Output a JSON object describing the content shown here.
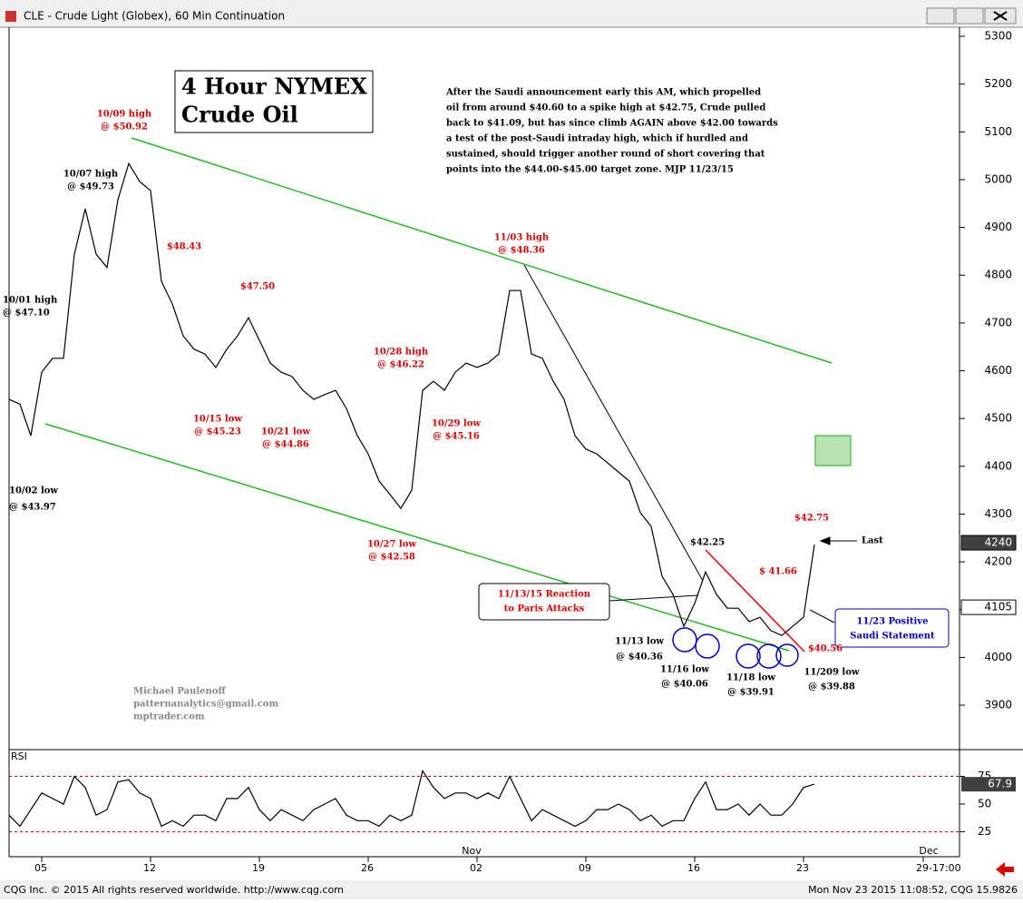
{
  "header": {
    "title": "CLE - Crude Light (Globex), 60 Min Continuation"
  },
  "chart_data": {
    "type": "line",
    "categories": [
      null,
      null,
      null,
      "05",
      null,
      null,
      null,
      null,
      null,
      null,
      null,
      null,
      null,
      "12",
      null,
      null,
      null,
      null,
      null,
      null,
      null,
      null,
      null,
      "19",
      null,
      null,
      null,
      null,
      null,
      null,
      null,
      null,
      null,
      "26",
      null,
      null,
      null,
      null,
      null,
      null,
      null,
      null,
      null,
      "02",
      null,
      null,
      null,
      null,
      null,
      null,
      null,
      null,
      null,
      "09",
      null,
      null,
      null,
      null,
      null,
      null,
      null,
      null,
      null,
      "16",
      null,
      null,
      null,
      null,
      null,
      null,
      null,
      null,
      null,
      "23",
      null,
      null,
      null,
      null,
      null,
      null,
      null,
      null,
      null,
      null,
      "29-17:00",
      null
    ],
    "month_categories": [
      null,
      null,
      null,
      null,
      null,
      null,
      null,
      null,
      null,
      null,
      null,
      null,
      null,
      null,
      null,
      null,
      null,
      null,
      null,
      null,
      null,
      null,
      null,
      null,
      null,
      null,
      null,
      null,
      null,
      null,
      null,
      null,
      null,
      null,
      null,
      null,
      null,
      null,
      null,
      null,
      null,
      null,
      null,
      "Nov",
      null,
      null,
      null,
      null,
      null,
      null,
      null,
      null,
      null,
      null,
      null,
      null,
      null,
      null,
      null,
      null,
      null,
      null,
      null,
      null,
      null,
      null,
      null,
      null,
      null,
      null,
      null,
      null,
      null,
      null,
      null,
      null,
      null,
      null,
      null,
      null,
      null,
      null,
      null,
      null,
      null,
      "Dec"
    ],
    "series": [
      {
        "color": "#000000",
        "values": [
          4540,
          4530,
          4464,
          4597,
          4626,
          4626,
          4844,
          4939,
          4844,
          4816,
          4958,
          5034,
          4996,
          4977,
          4787,
          4740,
          4673,
          4645,
          4635,
          4607,
          4645,
          4673,
          4711,
          4664,
          4616,
          4597,
          4588,
          4559,
          4540,
          4550,
          4559,
          4521,
          4464,
          4426,
          4369,
          4341,
          4312,
          4350,
          4559,
          4578,
          4559,
          4597,
          4616,
          4607,
          4616,
          4635,
          4768,
          4768,
          4635,
          4626,
          4578,
          4540,
          4464,
          4436,
          4426,
          4407,
          4388,
          4369,
          4303,
          4274,
          4170,
          4132,
          4065,
          4113,
          4179,
          4132,
          4103,
          4103,
          4075,
          4084,
          4056,
          4046,
          4065,
          4084,
          4236,
          null,
          null,
          null,
          null,
          null,
          null,
          null,
          null,
          null,
          null,
          null
        ]
      }
    ],
    "ylim": [
      3807,
      5319
    ],
    "yticks": [
      3900,
      4000,
      4100,
      4200,
      4300,
      4400,
      4500,
      4600,
      4700,
      4800,
      4900,
      5000,
      5100,
      5200,
      5300
    ],
    "price_markers": [
      {
        "value": 4240,
        "color": "#404040"
      },
      {
        "value": 4105,
        "color": "#ffffff"
      }
    ],
    "rsi": {
      "label": "RSI",
      "color": "#000000",
      "values": [
        40,
        30,
        45,
        60,
        55,
        50,
        75,
        65,
        40,
        45,
        70,
        72,
        60,
        55,
        30,
        35,
        30,
        40,
        40,
        35,
        55,
        55,
        65,
        45,
        35,
        45,
        40,
        35,
        45,
        50,
        55,
        40,
        35,
        35,
        30,
        40,
        35,
        40,
        80,
        65,
        55,
        60,
        60,
        55,
        60,
        55,
        75,
        55,
        35,
        45,
        40,
        35,
        30,
        35,
        45,
        45,
        50,
        45,
        35,
        40,
        30,
        35,
        35,
        55,
        70,
        45,
        45,
        50,
        40,
        50,
        40,
        40,
        50,
        65,
        68,
        null,
        null,
        null,
        null,
        null,
        null,
        null,
        null,
        null,
        null,
        null
      ],
      "ylim": [
        2.5,
        97.5
      ],
      "yticks": [
        25,
        50,
        75
      ],
      "bands": [
        75,
        25
      ],
      "marker": 67.9
    }
  },
  "title_box": [
    "4 Hour NYMEX",
    "Crude Oil"
  ],
  "commentary": [
    "After the Saudi announcement early this AM, which propelled",
    "oil from around $40.60 to a spike high at $42.75, Crude pulled",
    "back to $41.09, but has since climb AGAIN above $42.00 towards",
    "a test of the post-Saudi intraday high, which if hurdled and",
    "sustained, should trigger another round of short covering that",
    "points into the $44.00-$45.00 target zone.  MJP 11/23/15"
  ],
  "author": [
    "Michael Paulenoff",
    "patternanalytics@gmail.com",
    "mptrader.com"
  ],
  "annotations": [
    {
      "lines": [
        "10/09 high",
        "@ $50.92"
      ],
      "color": "#e00000"
    },
    {
      "lines": [
        "10/07 high",
        "@ $49.73"
      ],
      "color": "#000000"
    },
    {
      "lines": [
        "$48.43"
      ],
      "color": "#e00000"
    },
    {
      "lines": [
        "$47.50"
      ],
      "color": "#e00000"
    },
    {
      "lines": [
        "10/01 high",
        "@ $47.10"
      ],
      "color": "#000000"
    },
    {
      "lines": [
        "10/02 low",
        "@ $43.97"
      ],
      "color": "#000000"
    },
    {
      "lines": [
        "10/15 low",
        "@ $45.23"
      ],
      "color": "#e00000"
    },
    {
      "lines": [
        "10/21 low",
        "@ $44.86"
      ],
      "color": "#e00000"
    },
    {
      "lines": [
        "10/27 low",
        "@ $42.58"
      ],
      "color": "#e00000"
    },
    {
      "lines": [
        "10/28 high",
        "@ $46.22"
      ],
      "color": "#e00000"
    },
    {
      "lines": [
        "10/29 low",
        "@ $45.16"
      ],
      "color": "#e00000"
    },
    {
      "lines": [
        "11/03 high",
        "@ $48.36"
      ],
      "color": "#e00000"
    },
    {
      "lines": [
        "$42.25"
      ],
      "color": "#000000"
    },
    {
      "lines": [
        "$ 41.66"
      ],
      "color": "#e00000"
    },
    {
      "lines": [
        "$42.75"
      ],
      "color": "#e00000"
    },
    {
      "lines": [
        "Last"
      ],
      "color": "#000000"
    },
    {
      "lines": [
        "$40.56"
      ],
      "color": "#e00000"
    },
    {
      "lines": [
        "11/13 low",
        "@ $40.36"
      ],
      "color": "#000000"
    },
    {
      "lines": [
        "11/16 low",
        "@ $40.06"
      ],
      "color": "#000000"
    },
    {
      "lines": [
        "11/18 low",
        "@ $39.91"
      ],
      "color": "#000000"
    },
    {
      "lines": [
        "11/209 low",
        "@ $39.88"
      ],
      "color": "#000000"
    },
    {
      "lines": [
        "11/13/15 Reaction",
        "to Paris Attacks"
      ],
      "color": "#e00000"
    },
    {
      "lines": [
        "11/23 Positive",
        "Saudi Statement"
      ],
      "color": "#0000cc"
    }
  ],
  "footer": {
    "left": "CQG Inc. © 2015 All rights reserved worldwide. http://www.cqg.com",
    "right": "Mon Nov 23 2015 11:08:52, CQG 15.9826"
  }
}
